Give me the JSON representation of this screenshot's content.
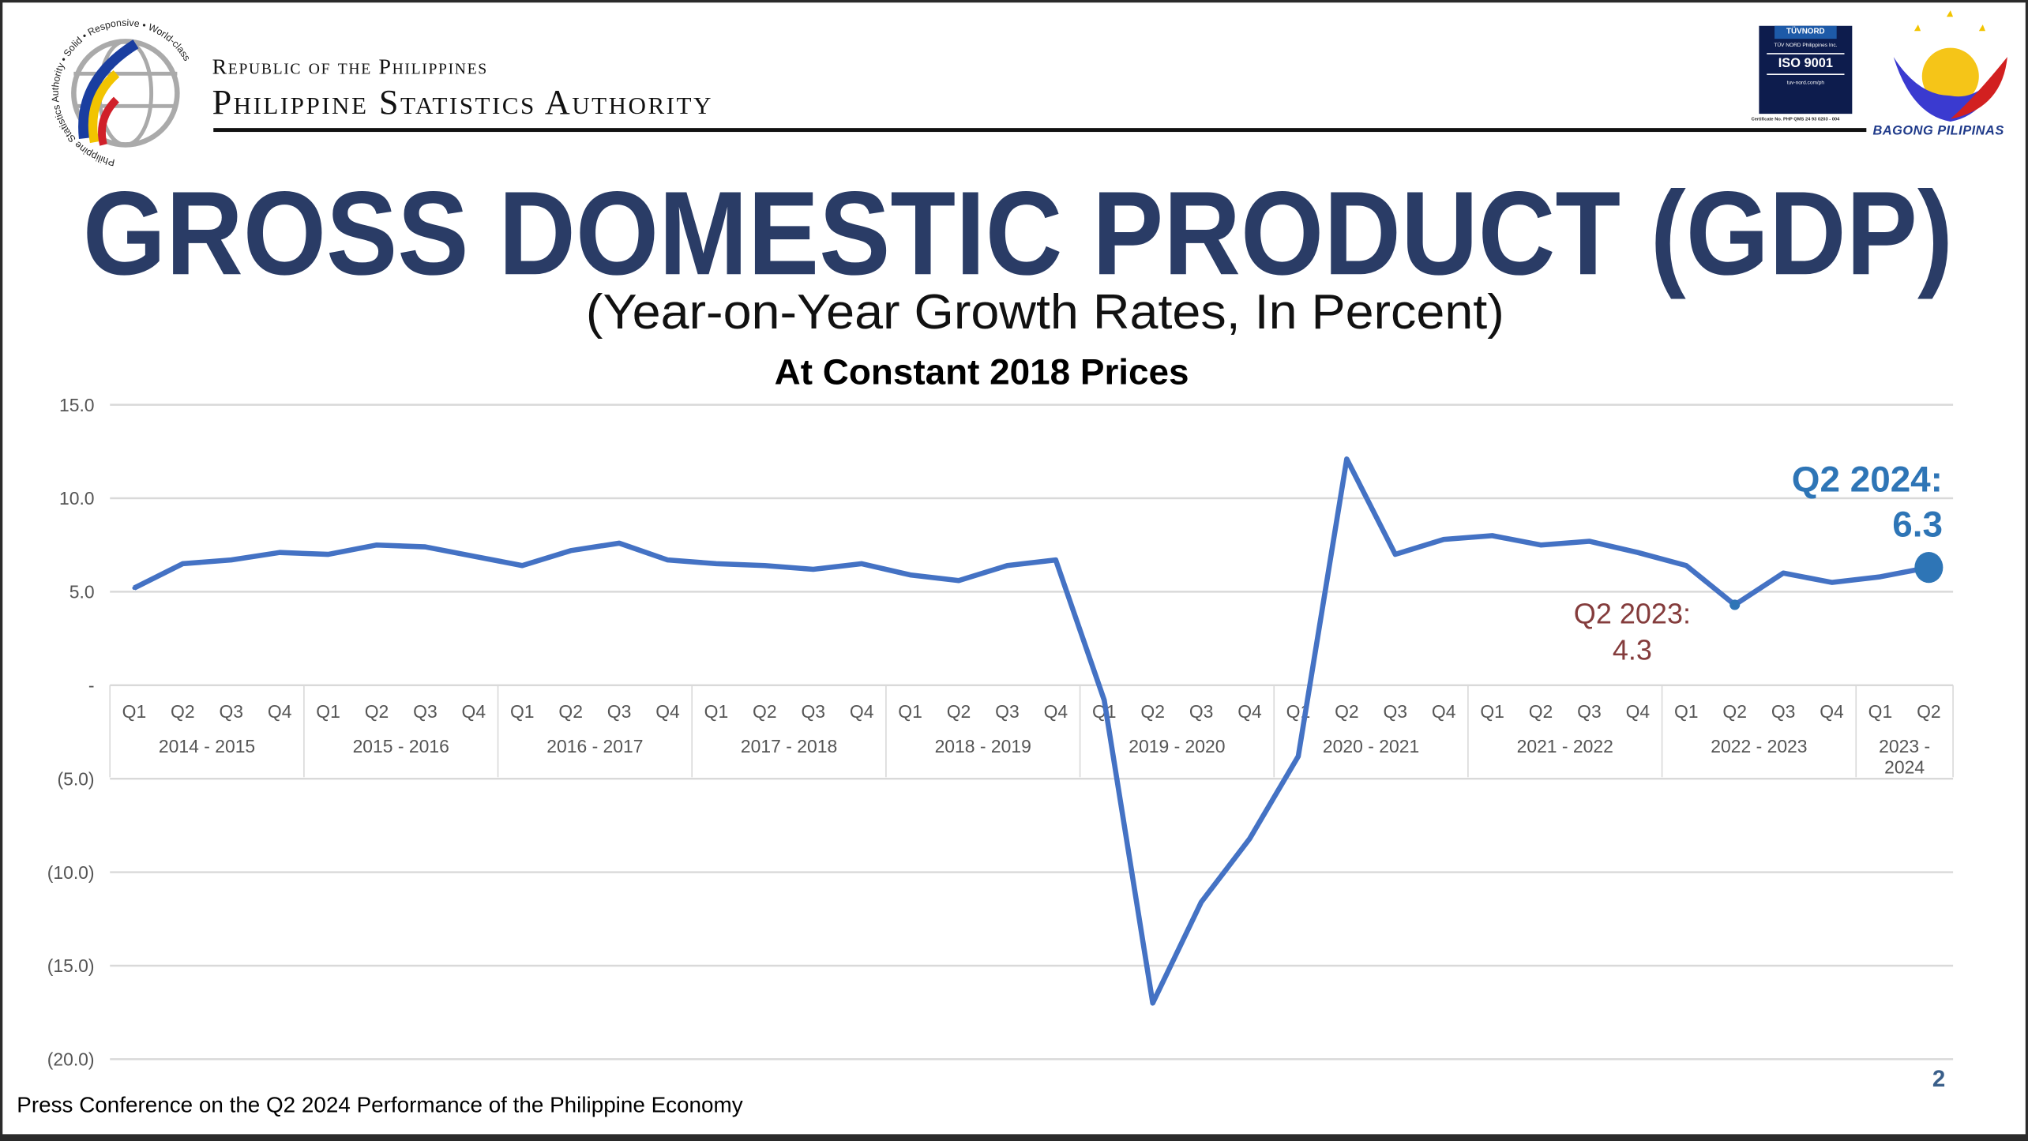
{
  "header": {
    "republic": "Republic of the Philippines",
    "agency": "Philippine Statistics Authority",
    "psa_logo_text": "Philippine Statistics Authority • Solid • Responsive • World-class",
    "iso_badge": {
      "brand": "TÜVNORD",
      "company": "TÜV NORD Philippines Inc.",
      "standard": "ISO 9001",
      "url": "tuv-nord.com/ph",
      "certificate": "Certificate No. PHP QMS 24 93 0203 - 004"
    },
    "bagong_pilipinas": "BAGONG PILIPINAS"
  },
  "footer": {
    "text": "Press Conference on the Q2 2024 Performance of the Philippine Economy",
    "page_number": "2"
  },
  "colors": {
    "title": "#2a3c66",
    "line": "#4472c4",
    "highlight": "#2e75b6",
    "annotation_2023": "#843c3c",
    "grid": "#d9d9d9"
  },
  "chart_data": {
    "type": "line",
    "title": "GROSS DOMESTIC PRODUCT (GDP)",
    "subtitle": "(Year-on-Year Growth Rates, In Percent)",
    "subtitle2": "At Constant 2018 Prices",
    "xlabel": "",
    "ylabel": "",
    "ylim": [
      -20,
      15
    ],
    "yticks": [
      {
        "value": 15,
        "label": "15.0"
      },
      {
        "value": 10,
        "label": "10.0"
      },
      {
        "value": 5,
        "label": "5.0"
      },
      {
        "value": 0,
        "label": "-"
      },
      {
        "value": -5,
        "label": "(5.0)"
      },
      {
        "value": -10,
        "label": "(10.0)"
      },
      {
        "value": -15,
        "label": "(15.0)"
      },
      {
        "value": -20,
        "label": "(20.0)"
      }
    ],
    "grid": true,
    "groups": [
      {
        "label": "2014 - 2015",
        "quarters": [
          "Q1",
          "Q2",
          "Q3",
          "Q4"
        ]
      },
      {
        "label": "2015 - 2016",
        "quarters": [
          "Q1",
          "Q2",
          "Q3",
          "Q4"
        ]
      },
      {
        "label": "2016 - 2017",
        "quarters": [
          "Q1",
          "Q2",
          "Q3",
          "Q4"
        ]
      },
      {
        "label": "2017 - 2018",
        "quarters": [
          "Q1",
          "Q2",
          "Q3",
          "Q4"
        ]
      },
      {
        "label": "2018 - 2019",
        "quarters": [
          "Q1",
          "Q2",
          "Q3",
          "Q4"
        ]
      },
      {
        "label": "2019 - 2020",
        "quarters": [
          "Q1",
          "Q2",
          "Q3",
          "Q4"
        ]
      },
      {
        "label": "2020 - 2021",
        "quarters": [
          "Q1",
          "Q2",
          "Q3",
          "Q4"
        ]
      },
      {
        "label": "2021 - 2022",
        "quarters": [
          "Q1",
          "Q2",
          "Q3",
          "Q4"
        ]
      },
      {
        "label": "2022 - 2023",
        "quarters": [
          "Q1",
          "Q2",
          "Q3",
          "Q4"
        ]
      },
      {
        "label": "2023 - 2024",
        "quarters": [
          "Q1",
          "Q2"
        ]
      }
    ],
    "series": [
      {
        "name": "GDP growth rate",
        "values": [
          5.2,
          6.5,
          6.7,
          7.1,
          7.0,
          7.5,
          7.4,
          6.9,
          6.4,
          7.2,
          7.6,
          6.7,
          6.5,
          6.4,
          6.2,
          6.5,
          5.9,
          5.6,
          6.4,
          6.7,
          -0.8,
          -17.0,
          -11.6,
          -8.2,
          -3.8,
          12.1,
          7.0,
          7.8,
          8.0,
          7.5,
          7.7,
          7.1,
          6.4,
          4.3,
          6.0,
          5.5,
          5.8,
          6.3
        ]
      }
    ],
    "annotations": [
      {
        "index": 37,
        "label": "Q2 2024:",
        "value": "6.3"
      },
      {
        "index": 33,
        "label": "Q2 2023:",
        "value": "4.3"
      }
    ]
  }
}
